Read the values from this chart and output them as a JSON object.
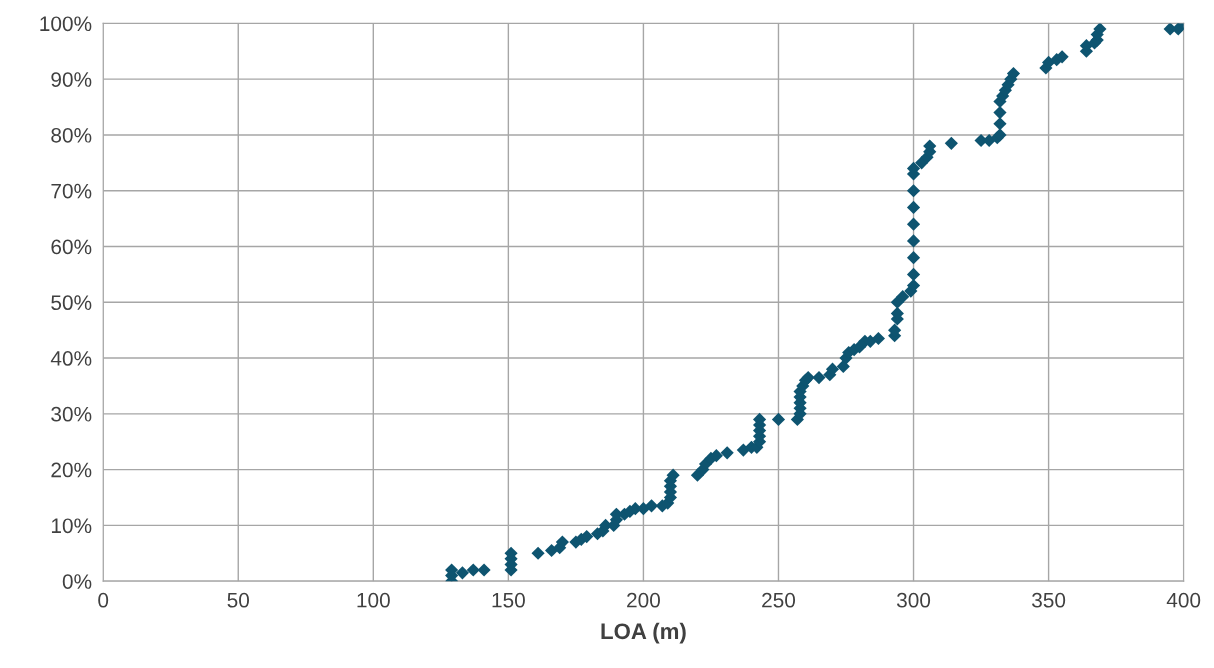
{
  "chart_data": {
    "type": "scatter",
    "xlabel": "LOA (m)",
    "x": [
      129,
      129,
      129,
      133,
      137,
      141,
      151,
      151,
      151,
      151,
      161,
      166,
      169,
      170,
      175,
      177,
      179,
      183,
      185,
      186,
      189,
      190,
      190,
      193,
      195,
      197,
      200,
      203,
      207,
      209,
      210,
      210,
      210,
      210,
      211,
      220,
      222,
      223,
      225,
      227,
      231,
      237,
      240,
      242,
      243,
      243,
      243,
      243,
      243,
      250,
      257,
      258,
      258,
      258,
      258,
      258,
      259,
      260,
      261,
      265,
      269,
      270,
      274,
      275,
      276,
      278,
      280,
      282,
      284,
      287,
      293,
      293,
      294,
      294,
      294,
      296,
      299,
      300,
      300,
      300,
      300,
      300,
      300,
      300,
      300,
      300,
      303,
      305,
      306,
      306,
      314,
      325,
      328,
      331,
      332,
      332,
      332,
      332,
      333,
      334,
      335,
      336,
      337,
      349,
      350,
      353,
      355,
      364,
      364,
      367,
      368,
      368,
      369,
      395,
      398,
      400
    ],
    "series": [
      {
        "color": "#0e5470",
        "values": [
          0,
          1,
          2,
          1.5,
          2,
          2,
          2,
          3,
          4,
          5,
          5,
          5.5,
          6,
          7,
          7,
          7.5,
          8,
          8.5,
          9,
          10,
          10,
          11,
          12,
          12,
          12.5,
          13,
          13,
          13.5,
          13.5,
          14,
          15,
          16,
          17,
          18,
          19,
          19,
          20,
          21,
          22,
          22.5,
          23,
          23.5,
          24,
          24,
          25,
          26,
          27,
          28,
          29,
          29,
          29,
          30,
          31,
          32,
          33,
          34,
          35,
          36,
          36.5,
          36.5,
          37,
          38,
          38.5,
          40,
          41,
          41.5,
          42,
          43,
          43,
          43.5,
          44,
          45,
          47,
          48,
          50,
          51,
          52,
          53,
          55,
          58,
          61,
          64,
          67,
          70,
          73,
          74,
          75,
          76,
          77,
          78,
          78.5,
          79,
          79,
          79.5,
          80,
          82,
          84,
          86,
          87,
          88,
          89,
          90,
          91,
          92,
          93,
          93.5,
          94,
          95,
          96,
          96.5,
          97,
          98,
          99,
          99,
          99,
          100
        ]
      }
    ],
    "marker": "diamond",
    "xlim": [
      0,
      400
    ],
    "xticks": [
      0,
      50,
      100,
      150,
      200,
      250,
      300,
      350,
      400
    ],
    "ylim": [
      0,
      100
    ],
    "yticks": [
      {
        "value": 0,
        "label": "0%"
      },
      {
        "value": 10,
        "label": "10%"
      },
      {
        "value": 20,
        "label": "20%"
      },
      {
        "value": 30,
        "label": "30%"
      },
      {
        "value": 40,
        "label": "40%"
      },
      {
        "value": 50,
        "label": "50%"
      },
      {
        "value": 60,
        "label": "60%"
      },
      {
        "value": 70,
        "label": "70%"
      },
      {
        "value": 80,
        "label": "80%"
      },
      {
        "value": 90,
        "label": "90%"
      },
      {
        "value": 100,
        "label": "100%"
      }
    ],
    "grid": true
  }
}
